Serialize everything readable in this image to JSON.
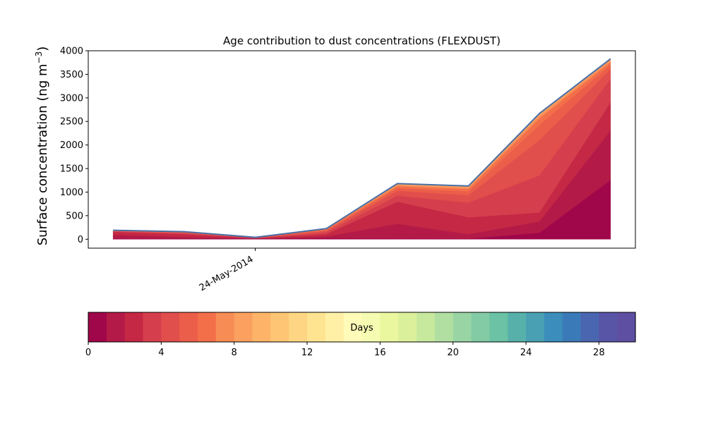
{
  "chart_data": {
    "type": "area",
    "stacked": true,
    "title": "Age contribution to dust concentrations (FLEXDUST)",
    "ylabel_main": "Surface concentration (ng m",
    "ylabel_sup": "−3",
    "ylabel_close": ")",
    "xlabel": "",
    "ylim": [
      -190,
      4000
    ],
    "yticks": [
      0,
      500,
      1000,
      1500,
      2000,
      2500,
      3000,
      3500,
      4000
    ],
    "x_offsets_days": [
      -2,
      -1,
      0,
      1,
      2,
      2.5,
      3,
      3.5,
      4.2
    ],
    "x_tick_label": "24-May-2014",
    "xlim_days": [
      -2.35,
      5.35
    ],
    "x_points_days": [
      -2,
      -1,
      0,
      1,
      2,
      3,
      4,
      5
    ],
    "total": [
      190,
      160,
      40,
      225,
      1180,
      1130,
      2670,
      3830
    ],
    "cumulative_layers": [
      [
        5,
        5,
        5,
        15,
        10,
        5,
        130,
        1250
      ],
      [
        90,
        40,
        10,
        50,
        320,
        100,
        370,
        2300
      ],
      [
        150,
        100,
        15,
        100,
        790,
        460,
        560,
        2900
      ],
      [
        160,
        120,
        20,
        140,
        920,
        770,
        1350,
        3400
      ],
      [
        165,
        130,
        25,
        170,
        1020,
        930,
        2100,
        3600
      ],
      [
        170,
        140,
        30,
        190,
        1080,
        1010,
        2420,
        3690
      ],
      [
        175,
        148,
        33,
        205,
        1120,
        1060,
        2560,
        3750
      ],
      [
        180,
        152,
        36,
        212,
        1145,
        1090,
        2610,
        3790
      ],
      [
        185,
        156,
        38,
        218,
        1162,
        1110,
        2645,
        3810
      ],
      [
        190,
        160,
        40,
        225,
        1180,
        1130,
        2670,
        3830
      ]
    ],
    "total_line_color": "#4a6fa5",
    "colorbar": {
      "label": "Days",
      "min": 0,
      "max": 30,
      "ticks": [
        0,
        4,
        8,
        12,
        16,
        20,
        24,
        28
      ],
      "colors": [
        "#a0064a",
        "#b31a47",
        "#c52844",
        "#d53f4d",
        "#e04f4b",
        "#eb5e4a",
        "#f36f4a",
        "#f88c55",
        "#fba05f",
        "#fdb468",
        "#fec674",
        "#fed683",
        "#fee391",
        "#fff0a6",
        "#fffbb8",
        "#f5fbb0",
        "#eaf79e",
        "#dbf09a",
        "#c7e99d",
        "#b1dfa2",
        "#99d5a4",
        "#82cba5",
        "#6bc2a4",
        "#57b1aa",
        "#4aa0b3",
        "#3b8dbb",
        "#3b7ab8",
        "#4a66b0",
        "#5854a6",
        "#5e4fa2"
      ]
    }
  }
}
